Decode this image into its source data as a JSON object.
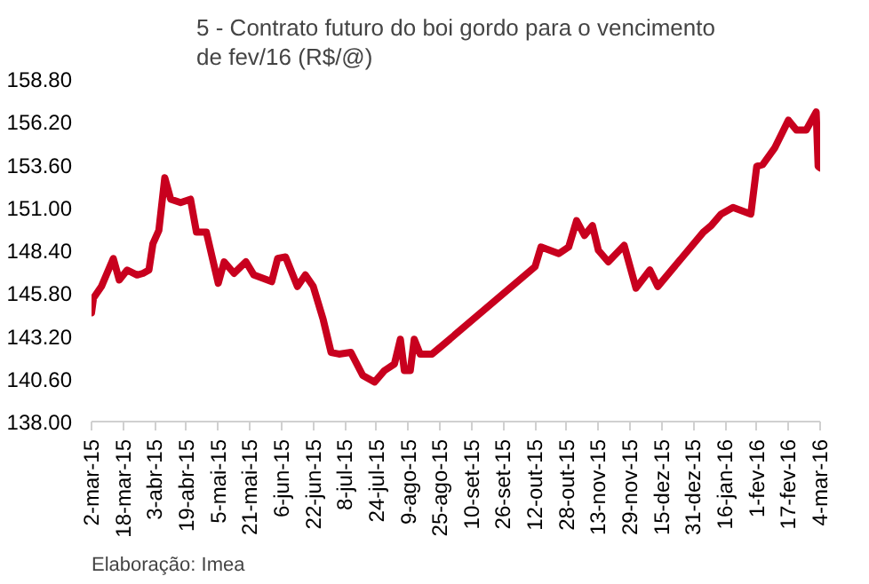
{
  "chart_data": {
    "type": "line",
    "title": "5 - Contrato futuro do boi gordo para o vencimento de fev/16 (R$/@)",
    "x": [
      "2015-03-02",
      "2015-03-03",
      "2015-03-07",
      "2015-03-13",
      "2015-03-16",
      "2015-03-20",
      "2015-03-25",
      "2015-03-28",
      "2015-03-31",
      "2015-04-02",
      "2015-04-05",
      "2015-04-08",
      "2015-04-11",
      "2015-04-16",
      "2015-04-21",
      "2015-04-24",
      "2015-04-29",
      "2015-05-05",
      "2015-05-08",
      "2015-05-13",
      "2015-05-19",
      "2015-05-23",
      "2015-06-01",
      "2015-06-04",
      "2015-06-08",
      "2015-06-14",
      "2015-06-18",
      "2015-06-22",
      "2015-06-27",
      "2015-07-01",
      "2015-07-05",
      "2015-07-11",
      "2015-07-17",
      "2015-07-23",
      "2015-07-28",
      "2015-08-02",
      "2015-08-05",
      "2015-08-07",
      "2015-08-10",
      "2015-08-12",
      "2015-08-15",
      "2015-08-21",
      "2015-08-26",
      "2015-10-12",
      "2015-10-15",
      "2015-10-24",
      "2015-10-29",
      "2015-11-02",
      "2015-11-06",
      "2015-11-10",
      "2015-11-13",
      "2015-11-18",
      "2015-11-26",
      "2015-12-02",
      "2015-12-09",
      "2015-12-13",
      "2016-01-05",
      "2016-01-09",
      "2016-01-14",
      "2016-01-20",
      "2016-01-29",
      "2016-02-01",
      "2016-02-04",
      "2016-02-10",
      "2016-02-17",
      "2016-02-21",
      "2016-02-26",
      "2016-03-02",
      "2016-03-03",
      "2016-03-04"
    ],
    "series": [
      {
        "color": "#c8001e",
        "values": [
          144.6,
          145.5,
          146.2,
          147.9,
          146.6,
          147.2,
          146.9,
          147.0,
          147.2,
          148.8,
          149.6,
          152.8,
          151.5,
          151.3,
          151.5,
          149.5,
          149.5,
          146.4,
          147.7,
          147.0,
          147.7,
          146.9,
          146.5,
          147.9,
          148.0,
          146.2,
          146.9,
          146.2,
          144.2,
          142.2,
          142.1,
          142.2,
          140.8,
          140.4,
          141.1,
          141.5,
          143.0,
          141.1,
          141.1,
          143.0,
          142.1,
          142.1,
          142.6,
          147.4,
          148.6,
          148.2,
          148.6,
          150.2,
          149.3,
          149.9,
          148.4,
          147.7,
          148.7,
          146.1,
          147.2,
          146.2,
          149.5,
          149.9,
          150.6,
          151.0,
          150.6,
          153.5,
          153.6,
          154.6,
          156.3,
          155.7,
          155.7,
          156.8,
          153.5,
          153.4
        ]
      }
    ],
    "ylim": [
      138.0,
      158.8
    ],
    "yticks": [
      {
        "value": 138.0,
        "label": "138.00"
      },
      {
        "value": 140.6,
        "label": "140.60"
      },
      {
        "value": 143.2,
        "label": "143.20"
      },
      {
        "value": 145.8,
        "label": "145.80"
      },
      {
        "value": 148.4,
        "label": "148.40"
      },
      {
        "value": 151.0,
        "label": "151.00"
      },
      {
        "value": 153.6,
        "label": "153.60"
      },
      {
        "value": 156.2,
        "label": "156.20"
      },
      {
        "value": 158.8,
        "label": "158.80"
      }
    ],
    "xlim": [
      "2015-03-02",
      "2016-03-04"
    ],
    "xticks": [
      {
        "value": "2015-03-02",
        "label": "2-mar-15"
      },
      {
        "value": "2015-03-18",
        "label": "18-mar-15"
      },
      {
        "value": "2015-04-03",
        "label": "3-abr-15"
      },
      {
        "value": "2015-04-19",
        "label": "19-abr-15"
      },
      {
        "value": "2015-05-05",
        "label": "5-mai-15"
      },
      {
        "value": "2015-05-21",
        "label": "21-mai-15"
      },
      {
        "value": "2015-06-06",
        "label": "6-jun-15"
      },
      {
        "value": "2015-06-22",
        "label": "22-jun-15"
      },
      {
        "value": "2015-07-08",
        "label": "8-jul-15"
      },
      {
        "value": "2015-07-24",
        "label": "24-jul-15"
      },
      {
        "value": "2015-08-09",
        "label": "9-ago-15"
      },
      {
        "value": "2015-08-25",
        "label": "25-ago-15"
      },
      {
        "value": "2015-09-10",
        "label": "10-set-15"
      },
      {
        "value": "2015-09-26",
        "label": "26-set-15"
      },
      {
        "value": "2015-10-12",
        "label": "12-out-15"
      },
      {
        "value": "2015-10-28",
        "label": "28-out-15"
      },
      {
        "value": "2015-11-13",
        "label": "13-nov-15"
      },
      {
        "value": "2015-11-29",
        "label": "29-nov-15"
      },
      {
        "value": "2015-12-15",
        "label": "15-dez-15"
      },
      {
        "value": "2015-12-31",
        "label": "31-dez-15"
      },
      {
        "value": "2016-01-16",
        "label": "16-jan-16"
      },
      {
        "value": "2016-02-01",
        "label": "1-fev-16"
      },
      {
        "value": "2016-02-17",
        "label": "17-fev-16"
      },
      {
        "value": "2016-03-04",
        "label": "4-mar-16"
      }
    ],
    "grid": false,
    "annotations": [
      "Elaboração: Imea"
    ]
  }
}
